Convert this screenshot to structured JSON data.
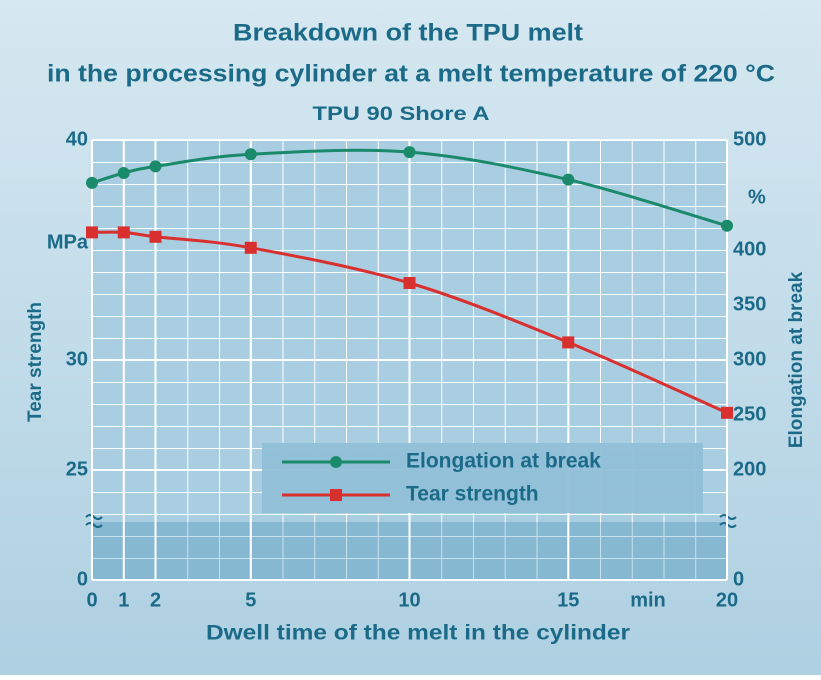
{
  "chart_data": {
    "type": "line",
    "title": [
      "Breakdown of the TPU melt",
      "in the processing cylinder at a melt temperature of 220 °C"
    ],
    "subtitle": "TPU 90 Shore A",
    "x_label": "Dwell time of the melt in the cylinder",
    "x_unit": "min",
    "y_label": "Tear strength",
    "y_unit": "MPa",
    "y2_label": "Elongation at break",
    "y2_unit": "%",
    "x": [
      0,
      1,
      2,
      5,
      10,
      15,
      20
    ],
    "xlim": [
      0,
      20
    ],
    "xticks": [
      0,
      1,
      2,
      5,
      10,
      15,
      20
    ],
    "ylim": [
      0,
      40
    ],
    "yticks": [
      0,
      25,
      30,
      40
    ],
    "ybreak": [
      0,
      20
    ],
    "y2lim": [
      0,
      500
    ],
    "y2ticks": [
      0,
      200,
      250,
      300,
      350,
      400,
      500
    ],
    "y2break": [
      0,
      100
    ],
    "grid": true,
    "legend": "lower center",
    "series": [
      {
        "name": "Elongation at break",
        "color": "#1a8a6a",
        "axis": "y2",
        "marker": "circle",
        "values": [
          461,
          470,
          476,
          487,
          489,
          464,
          422
        ]
      },
      {
        "name": "Tear strength",
        "color": "#d8302f",
        "axis": "y",
        "marker": "square",
        "values": [
          35.8,
          35.8,
          35.6,
          35.1,
          33.5,
          30.8,
          27.6
        ]
      }
    ]
  }
}
